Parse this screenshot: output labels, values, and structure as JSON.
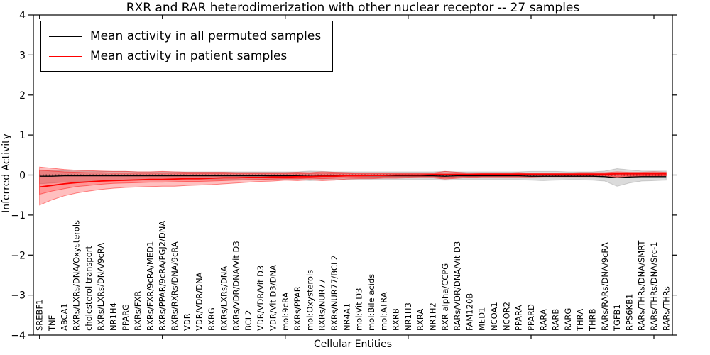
{
  "chart_data": {
    "type": "line",
    "title": "RXR and RAR heterodimerization with other nuclear receptor -- 27 samples",
    "xlabel": "Cellular Entities",
    "ylabel": "Inferred Activity",
    "ylim": [
      -4,
      4
    ],
    "yticks": [
      4,
      3,
      2,
      1,
      0,
      -1,
      -2,
      -3,
      -4
    ],
    "grid": false,
    "legend_position": "upper left",
    "zero_line_style": "black dotted",
    "categories": [
      "SREBF1",
      "TNF",
      "ABCA1",
      "RXRs/LXRs/DNA/Oxysterols",
      "cholesterol transport",
      "RXRs/LXRs/DNA/9cRA",
      "NR1H4",
      "PPARG",
      "RXRs/FXR",
      "RXRs/FXR/9cRA/MED1",
      "RXRs/PPAR/9cRA/PGJ2/DNA",
      "RXRs/RXRs/DNA/9cRA",
      "VDR",
      "VDR/VDR/DNA",
      "RXRG",
      "RXRs/LXRs/DNA",
      "RXRs/VDR/DNA/Vit D3",
      "BCL2",
      "VDR/VDR/Vit D3",
      "VDR/Vit D3/DNA",
      "mol:9cRA",
      "RXRs/PPAR",
      "mol:Oxysterols",
      "RXRs/NUR77",
      "RXRs/NUR77/BCL2",
      "NR4A1",
      "mol:Vit D3",
      "mol:Bile acids",
      "mol:ATRA",
      "RXRB",
      "NR1H3",
      "RXRA",
      "NR1H2",
      "RXR alpha/CCPG",
      "RARs/VDR/DNA/Vit D3",
      "FAM120B",
      "MED1",
      "NCOA1",
      "NCOR2",
      "PPARA",
      "PPARD",
      "RARA",
      "RARB",
      "RARG",
      "THRA",
      "THRB",
      "RARs/RARs/DNA/9cRA",
      "TGFB1",
      "RPS6KB1",
      "RARs/THRs/DNA/SMRT",
      "RARs/THRs/DNA/Src-1",
      "RARs/THRs"
    ],
    "series": [
      {
        "name": "Mean activity in all permuted samples",
        "color": "#000000",
        "values": [
          -0.03,
          -0.03,
          -0.02,
          -0.02,
          -0.02,
          -0.02,
          -0.02,
          -0.02,
          -0.02,
          -0.02,
          -0.02,
          -0.02,
          -0.02,
          -0.02,
          -0.02,
          -0.02,
          -0.02,
          -0.02,
          -0.02,
          -0.02,
          -0.02,
          -0.02,
          -0.03,
          -0.02,
          -0.02,
          -0.02,
          -0.02,
          -0.02,
          -0.02,
          -0.02,
          -0.02,
          -0.02,
          -0.02,
          -0.03,
          -0.02,
          -0.02,
          -0.02,
          -0.02,
          -0.02,
          -0.02,
          -0.03,
          -0.03,
          -0.03,
          -0.03,
          -0.03,
          -0.03,
          -0.04,
          -0.07,
          -0.05,
          -0.04,
          -0.04,
          -0.04
        ]
      },
      {
        "name": "Mean activity in patient samples",
        "color": "#ff0000",
        "values": [
          -0.3,
          -0.26,
          -0.22,
          -0.19,
          -0.17,
          -0.15,
          -0.14,
          -0.13,
          -0.12,
          -0.11,
          -0.11,
          -0.1,
          -0.09,
          -0.09,
          -0.08,
          -0.07,
          -0.07,
          -0.06,
          -0.06,
          -0.05,
          -0.05,
          -0.04,
          -0.04,
          -0.03,
          -0.03,
          -0.02,
          -0.02,
          -0.01,
          -0.01,
          0.0,
          0.0,
          0.0,
          0.01,
          0.01,
          0.01,
          0.01,
          0.02,
          0.02,
          0.02,
          0.02,
          0.02,
          0.02,
          0.02,
          0.02,
          0.02,
          0.02,
          0.02,
          0.03,
          0.03,
          0.03,
          0.03,
          0.03
        ]
      }
    ],
    "bands": [
      {
        "name": "permuted-samples-band",
        "color": "#999999",
        "opacity": 0.35,
        "upper": [
          0.13,
          0.12,
          0.11,
          0.1,
          0.1,
          0.09,
          0.09,
          0.09,
          0.08,
          0.08,
          0.08,
          0.08,
          0.08,
          0.08,
          0.08,
          0.08,
          0.08,
          0.08,
          0.08,
          0.08,
          0.08,
          0.08,
          0.1,
          0.09,
          0.08,
          0.08,
          0.08,
          0.08,
          0.08,
          0.08,
          0.08,
          0.08,
          0.08,
          0.09,
          0.08,
          0.08,
          0.08,
          0.08,
          0.08,
          0.08,
          0.09,
          0.09,
          0.09,
          0.08,
          0.08,
          0.08,
          0.1,
          0.16,
          0.13,
          0.1,
          0.1,
          0.1
        ],
        "lower": [
          -0.22,
          -0.2,
          -0.18,
          -0.17,
          -0.16,
          -0.15,
          -0.14,
          -0.14,
          -0.13,
          -0.13,
          -0.13,
          -0.13,
          -0.12,
          -0.12,
          -0.12,
          -0.12,
          -0.12,
          -0.12,
          -0.12,
          -0.12,
          -0.12,
          -0.12,
          -0.14,
          -0.13,
          -0.12,
          -0.12,
          -0.12,
          -0.12,
          -0.12,
          -0.12,
          -0.12,
          -0.12,
          -0.12,
          -0.13,
          -0.12,
          -0.12,
          -0.12,
          -0.12,
          -0.12,
          -0.12,
          -0.13,
          -0.14,
          -0.13,
          -0.12,
          -0.12,
          -0.13,
          -0.15,
          -0.28,
          -0.2,
          -0.15,
          -0.14,
          -0.13
        ]
      },
      {
        "name": "patient-samples-band-outer",
        "color": "#ff0000",
        "opacity": 0.25,
        "upper": [
          0.2,
          0.17,
          0.14,
          0.12,
          0.11,
          0.1,
          0.09,
          0.09,
          0.08,
          0.08,
          0.09,
          0.08,
          0.07,
          0.07,
          0.07,
          0.07,
          0.06,
          0.06,
          0.06,
          0.06,
          0.06,
          0.07,
          0.06,
          0.08,
          0.07,
          0.06,
          0.05,
          0.05,
          0.05,
          0.05,
          0.05,
          0.05,
          0.05,
          0.09,
          0.07,
          0.05,
          0.05,
          0.05,
          0.05,
          0.06,
          0.05,
          0.05,
          0.05,
          0.05,
          0.06,
          0.06,
          0.06,
          0.08,
          0.07,
          0.07,
          0.08,
          0.07
        ],
        "lower": [
          -0.75,
          -0.62,
          -0.52,
          -0.45,
          -0.4,
          -0.36,
          -0.33,
          -0.31,
          -0.3,
          -0.29,
          -0.28,
          -0.28,
          -0.26,
          -0.25,
          -0.24,
          -0.22,
          -0.2,
          -0.18,
          -0.16,
          -0.15,
          -0.13,
          -0.14,
          -0.12,
          -0.14,
          -0.13,
          -0.1,
          -0.09,
          -0.09,
          -0.08,
          -0.08,
          -0.07,
          -0.07,
          -0.07,
          -0.1,
          -0.08,
          -0.06,
          -0.05,
          -0.05,
          -0.05,
          -0.05,
          -0.05,
          -0.04,
          -0.04,
          -0.04,
          -0.04,
          -0.04,
          -0.04,
          -0.05,
          -0.04,
          -0.03,
          -0.03,
          -0.02
        ]
      },
      {
        "name": "patient-samples-band-inner",
        "color": "#ff0000",
        "opacity": 0.22,
        "upper": [
          0.12,
          0.1,
          0.08,
          0.07,
          0.06,
          0.06,
          0.05,
          0.05,
          0.05,
          0.05,
          0.05,
          0.05,
          0.04,
          0.04,
          0.04,
          0.04,
          0.04,
          0.04,
          0.04,
          0.04,
          0.04,
          0.04,
          0.04,
          0.05,
          0.04,
          0.04,
          0.03,
          0.03,
          0.03,
          0.03,
          0.03,
          0.03,
          0.03,
          0.05,
          0.04,
          0.03,
          0.03,
          0.03,
          0.03,
          0.04,
          0.03,
          0.03,
          0.03,
          0.03,
          0.04,
          0.04,
          0.04,
          0.05,
          0.04,
          0.04,
          0.05,
          0.04
        ],
        "lower": [
          -0.48,
          -0.4,
          -0.34,
          -0.29,
          -0.26,
          -0.23,
          -0.21,
          -0.2,
          -0.19,
          -0.18,
          -0.18,
          -0.17,
          -0.16,
          -0.16,
          -0.15,
          -0.14,
          -0.13,
          -0.12,
          -0.11,
          -0.1,
          -0.09,
          -0.09,
          -0.08,
          -0.09,
          -0.08,
          -0.07,
          -0.06,
          -0.06,
          -0.05,
          -0.05,
          -0.05,
          -0.04,
          -0.04,
          -0.06,
          -0.05,
          -0.04,
          -0.03,
          -0.03,
          -0.03,
          -0.03,
          -0.03,
          -0.03,
          -0.02,
          -0.02,
          -0.02,
          -0.02,
          -0.02,
          -0.03,
          -0.02,
          -0.02,
          -0.02,
          -0.01
        ]
      }
    ]
  }
}
